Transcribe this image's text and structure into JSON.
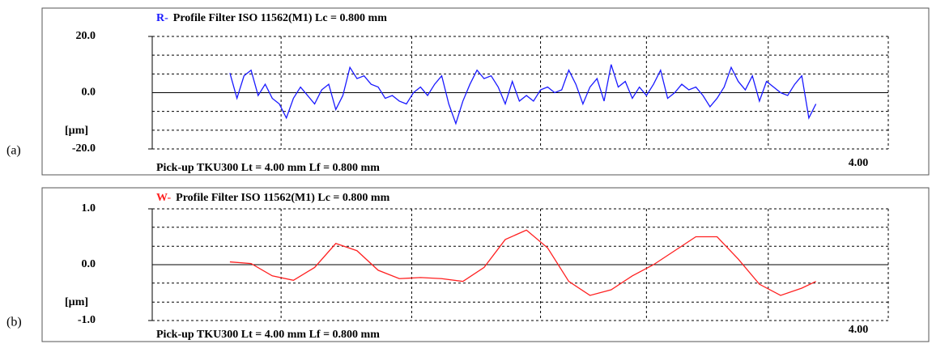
{
  "chart_data": [
    {
      "type": "line",
      "panel_label": "(a)",
      "profile_letter": "R-",
      "title": "Profile  Filter  ISO 11562(M1)  Lc = 0.800  mm",
      "footer": "Pick-up TKU300    Lt = 4.00  mm    Lf = 0.800  mm",
      "y_label": "[µm]",
      "xlim": [
        0,
        4.17
      ],
      "xticks": [
        {
          "value": 4,
          "label": "4.00"
        }
      ],
      "xgrid": [
        0.73,
        1.47,
        2.2,
        2.8,
        3.49
      ],
      "ylim": [
        -20,
        20
      ],
      "yticks": [
        {
          "value": 20,
          "label": "20.0"
        },
        {
          "value": 0,
          "label": "0.0"
        },
        {
          "value": -20,
          "label": "-20.0"
        }
      ],
      "ygrid": [
        13.33,
        6.67,
        -6.67,
        -13.33
      ],
      "grid": true,
      "x": [
        0.44,
        0.48,
        0.52,
        0.56,
        0.6,
        0.64,
        0.68,
        0.72,
        0.76,
        0.8,
        0.84,
        0.88,
        0.92,
        0.96,
        1.0,
        1.04,
        1.08,
        1.12,
        1.16,
        1.2,
        1.24,
        1.28,
        1.32,
        1.36,
        1.4,
        1.44,
        1.48,
        1.52,
        1.56,
        1.6,
        1.64,
        1.68,
        1.72,
        1.76,
        1.8,
        1.84,
        1.88,
        1.92,
        1.96,
        2.0,
        2.04,
        2.08,
        2.12,
        2.16,
        2.2,
        2.24,
        2.28,
        2.32,
        2.36,
        2.4,
        2.44,
        2.48,
        2.52,
        2.56,
        2.6,
        2.64,
        2.68,
        2.72,
        2.76,
        2.8,
        2.84,
        2.88,
        2.92,
        2.96,
        3.0,
        3.04,
        3.08,
        3.12,
        3.16,
        3.2,
        3.24,
        3.28,
        3.32,
        3.36,
        3.4,
        3.44,
        3.48,
        3.52,
        3.56,
        3.6,
        3.64,
        3.68,
        3.72,
        3.76
      ],
      "series": [
        {
          "color": "#1a1aff",
          "values": [
            7,
            -2,
            6,
            8,
            -1,
            3,
            -2,
            -4,
            -9,
            -2,
            2,
            -1,
            -4,
            1,
            3,
            -6,
            -1,
            9,
            5,
            6,
            3,
            2,
            -2,
            -1,
            -3,
            -4,
            0,
            2,
            -1,
            3,
            6,
            -4,
            -11,
            -3,
            3,
            8,
            5,
            6,
            2,
            -4,
            4,
            -3,
            -1,
            -3,
            1,
            2,
            0,
            1,
            8,
            3,
            -4,
            2,
            5,
            -3,
            10,
            2,
            4,
            -2,
            2,
            -1,
            3,
            8,
            -2,
            0,
            3,
            1,
            2,
            -1,
            -5,
            -2,
            2,
            9,
            4,
            1,
            6,
            -3,
            4,
            2,
            0,
            -1,
            3,
            6,
            -9,
            -4
          ]
        }
      ]
    },
    {
      "type": "line",
      "panel_label": "(b)",
      "profile_letter": "W-",
      "title": "Profile  Filter  ISO 11562(M1)  Lc = 0.800  mm",
      "footer": "Pick-up TKU300    Lt = 4.00  mm    Lf = 0.800  mm",
      "y_label": "[µm]",
      "xlim": [
        0,
        4.17
      ],
      "xticks": [
        {
          "value": 4,
          "label": "4.00"
        }
      ],
      "xgrid": [
        0.73,
        1.47,
        2.2,
        2.8,
        3.49
      ],
      "ylim": [
        -1,
        1
      ],
      "yticks": [
        {
          "value": 1,
          "label": "1.0"
        },
        {
          "value": 0,
          "label": "0.0"
        },
        {
          "value": -1,
          "label": "-1.0"
        }
      ],
      "ygrid": [
        0.67,
        0.33,
        -0.33,
        -0.67
      ],
      "grid": true,
      "x": [
        0.44,
        0.56,
        0.68,
        0.8,
        0.92,
        1.04,
        1.16,
        1.28,
        1.4,
        1.52,
        1.64,
        1.76,
        1.88,
        2.0,
        2.12,
        2.24,
        2.36,
        2.48,
        2.6,
        2.72,
        2.84,
        2.96,
        3.08,
        3.2,
        3.32,
        3.44,
        3.56,
        3.68,
        3.76
      ],
      "series": [
        {
          "color": "#ff2020",
          "values": [
            0.05,
            0.02,
            -0.2,
            -0.28,
            -0.05,
            0.38,
            0.25,
            -0.1,
            -0.25,
            -0.23,
            -0.25,
            -0.3,
            -0.05,
            0.45,
            0.62,
            0.3,
            -0.3,
            -0.55,
            -0.45,
            -0.2,
            0.0,
            0.25,
            0.5,
            0.5,
            0.1,
            -0.35,
            -0.55,
            -0.42,
            -0.3
          ]
        }
      ]
    }
  ]
}
